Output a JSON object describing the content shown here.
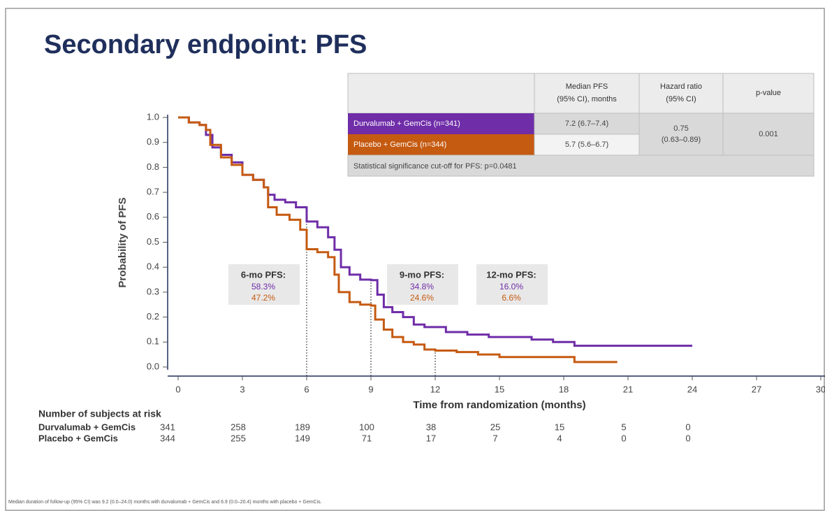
{
  "chart_data": {
    "type": "line",
    "title": "Secondary endpoint: PFS",
    "xlabel": "Time from randomization (months)",
    "ylabel": "Probability of PFS",
    "xlim": [
      0,
      30
    ],
    "ylim": [
      0,
      1
    ],
    "xticks": [
      0,
      3,
      6,
      9,
      12,
      15,
      18,
      21,
      24,
      27,
      30
    ],
    "yticks": [
      {
        "value": 0,
        "label": "0.0"
      },
      0.1,
      0.2,
      0.3,
      0.4,
      0.5,
      0.6,
      0.7,
      0.8,
      0.9,
      {
        "value": 1,
        "label": "1.0"
      }
    ],
    "step": true,
    "series": [
      {
        "name": "Durvalumab + GemCis",
        "color": "#6f2da8",
        "x": [
          0,
          0.5,
          1,
          1.3,
          1.6,
          2,
          2.5,
          3,
          3.5,
          4,
          4.2,
          4.5,
          5,
          5.5,
          6,
          6.5,
          7,
          7.3,
          7.6,
          8,
          8.5,
          9,
          9.3,
          9.6,
          10,
          10.5,
          11,
          11.5,
          12.5,
          13.5,
          14.5,
          16.5,
          17.5,
          18.5,
          24
        ],
        "values": [
          1.0,
          0.98,
          0.97,
          0.93,
          0.88,
          0.85,
          0.82,
          0.77,
          0.75,
          0.72,
          0.69,
          0.67,
          0.66,
          0.64,
          0.583,
          0.56,
          0.52,
          0.47,
          0.4,
          0.37,
          0.35,
          0.348,
          0.29,
          0.24,
          0.22,
          0.2,
          0.17,
          0.16,
          0.14,
          0.13,
          0.12,
          0.11,
          0.1,
          0.085,
          0.085
        ]
      },
      {
        "name": "Placebo + GemCis",
        "color": "#c55a11",
        "x": [
          0,
          0.5,
          1,
          1.3,
          1.5,
          2,
          2.5,
          3,
          3.5,
          4,
          4.2,
          4.6,
          5.2,
          5.7,
          6,
          6.5,
          7,
          7.3,
          7.5,
          8,
          8.5,
          9,
          9.2,
          9.6,
          10,
          10.5,
          11,
          11.5,
          12,
          13,
          14,
          15,
          18.5,
          20.5
        ],
        "values": [
          1.0,
          0.98,
          0.97,
          0.95,
          0.89,
          0.84,
          0.81,
          0.77,
          0.75,
          0.72,
          0.64,
          0.61,
          0.59,
          0.55,
          0.472,
          0.46,
          0.44,
          0.37,
          0.3,
          0.26,
          0.25,
          0.246,
          0.19,
          0.15,
          0.12,
          0.1,
          0.09,
          0.07,
          0.066,
          0.06,
          0.05,
          0.04,
          0.02,
          0.02
        ]
      }
    ],
    "annotations": [
      {
        "x": 6,
        "title": "6-mo PFS:",
        "labels": [
          "58.3%",
          "47.2%"
        ]
      },
      {
        "x": 9,
        "title": "9-mo PFS:",
        "labels": [
          "34.8%",
          "24.6%"
        ]
      },
      {
        "x": 12,
        "title": "12-mo PFS:",
        "labels": [
          "16.0%",
          "6.6%"
        ]
      }
    ],
    "summary_table": {
      "header": [
        [
          "Median PFS",
          "(95% CI), months"
        ],
        [
          "Hazard ratio",
          "(95% CI)"
        ],
        [
          "p-value"
        ]
      ],
      "rows": [
        [
          "Durvalumab + GemCis (n=341)",
          "7.2 (6.7–7.4)"
        ],
        [
          "Placebo + GemCis (n=344)",
          "5.7 (5.6–6.7)"
        ]
      ],
      "hazard_ratio": [
        "0.75",
        "(0.63–0.89)"
      ],
      "p_value": "0.001",
      "footer": "Statistical significance cut-off for PFS: p=0.0481"
    },
    "risk_table": {
      "title": "Number of subjects at risk",
      "rows": [
        {
          "name": "Durvalumab + GemCis",
          "values": [
            341,
            258,
            189,
            100,
            38,
            25,
            15,
            5,
            0
          ]
        },
        {
          "name": "Placebo + GemCis",
          "values": [
            344,
            255,
            149,
            71,
            17,
            7,
            4,
            0,
            0
          ]
        }
      ]
    },
    "footnote": "Median duration of follow-up (95% CI) was 9.2 (0.0–24.0) months with durvalumab + GemCis and 6.9 (0.0–20.4) months with placebo + GemCis."
  }
}
